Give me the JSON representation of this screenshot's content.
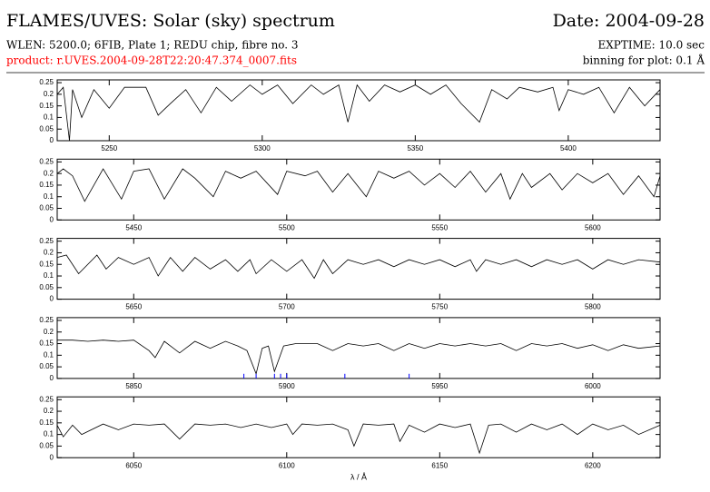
{
  "header": {
    "title": "FLAMES/UVES: Solar (sky) spectrum",
    "date": "Date: 2004-09-28",
    "setup": "WLEN: 5200.0; 6FIB, Plate 1; REDU chip, fibre no. 3",
    "exptime": "EXPTIME: 10.0 sec",
    "product": "product: r.UVES.2004-09-28T22:20:47.374_0007.fits",
    "binning": "binning for plot: 0.1 Å"
  },
  "chart_data": [
    {
      "type": "line",
      "color": "#000000",
      "xlim": [
        5233,
        5430
      ],
      "xticks": [
        5250,
        5300,
        5350,
        5400
      ],
      "ylim": [
        0,
        0.262
      ],
      "yticks": [
        0,
        0.05,
        0.1,
        0.15,
        0.2,
        0.25
      ],
      "x": [
        5233,
        5235,
        5237,
        5238,
        5241,
        5245,
        5250,
        5255,
        5262,
        5266,
        5270,
        5275,
        5280,
        5285,
        5290,
        5296,
        5300,
        5305,
        5310,
        5316,
        5320,
        5325,
        5328,
        5331,
        5335,
        5340,
        5345,
        5350,
        5355,
        5360,
        5365,
        5371,
        5375,
        5380,
        5384,
        5390,
        5395,
        5397,
        5400,
        5405,
        5410,
        5415,
        5420,
        5425,
        5430
      ],
      "values": [
        0.2,
        0.23,
        0.0,
        0.22,
        0.1,
        0.22,
        0.14,
        0.23,
        0.23,
        0.11,
        0.16,
        0.22,
        0.12,
        0.23,
        0.17,
        0.24,
        0.2,
        0.24,
        0.16,
        0.24,
        0.2,
        0.24,
        0.08,
        0.24,
        0.17,
        0.24,
        0.21,
        0.24,
        0.2,
        0.24,
        0.16,
        0.08,
        0.22,
        0.18,
        0.23,
        0.21,
        0.23,
        0.13,
        0.22,
        0.2,
        0.23,
        0.12,
        0.23,
        0.15,
        0.22
      ]
    },
    {
      "type": "line",
      "color": "#000000",
      "xlim": [
        5425,
        5622
      ],
      "xticks": [
        5450,
        5500,
        5550,
        5600
      ],
      "ylim": [
        0,
        0.262
      ],
      "yticks": [
        0,
        0.05,
        0.1,
        0.15,
        0.2,
        0.25
      ],
      "x": [
        5425,
        5427,
        5430,
        5434,
        5440,
        5446,
        5450,
        5455,
        5460,
        5466,
        5470,
        5476,
        5480,
        5485,
        5490,
        5497,
        5500,
        5506,
        5510,
        5515,
        5520,
        5526,
        5530,
        5535,
        5540,
        5545,
        5550,
        5555,
        5560,
        5565,
        5570,
        5573,
        5577,
        5580,
        5586,
        5590,
        5595,
        5600,
        5605,
        5610,
        5615,
        5620,
        5622
      ],
      "values": [
        0.2,
        0.22,
        0.19,
        0.08,
        0.22,
        0.09,
        0.21,
        0.22,
        0.09,
        0.22,
        0.18,
        0.1,
        0.21,
        0.18,
        0.21,
        0.11,
        0.21,
        0.19,
        0.21,
        0.12,
        0.2,
        0.1,
        0.21,
        0.18,
        0.21,
        0.15,
        0.2,
        0.14,
        0.21,
        0.12,
        0.2,
        0.09,
        0.2,
        0.14,
        0.2,
        0.13,
        0.2,
        0.16,
        0.2,
        0.11,
        0.19,
        0.1,
        0.19
      ]
    },
    {
      "type": "line",
      "color": "#000000",
      "xlim": [
        5625,
        5822
      ],
      "xticks": [
        5650,
        5700,
        5750,
        5800
      ],
      "ylim": [
        0,
        0.262
      ],
      "yticks": [
        0,
        0.05,
        0.1,
        0.15,
        0.2,
        0.25
      ],
      "x": [
        5625,
        5628,
        5632,
        5638,
        5641,
        5645,
        5650,
        5655,
        5658,
        5662,
        5666,
        5670,
        5675,
        5680,
        5684,
        5688,
        5690,
        5695,
        5700,
        5705,
        5709,
        5712,
        5715,
        5720,
        5725,
        5730,
        5735,
        5740,
        5745,
        5750,
        5755,
        5760,
        5762,
        5765,
        5770,
        5775,
        5780,
        5785,
        5790,
        5795,
        5800,
        5805,
        5810,
        5815,
        5822
      ],
      "values": [
        0.18,
        0.19,
        0.11,
        0.19,
        0.13,
        0.18,
        0.15,
        0.18,
        0.1,
        0.18,
        0.12,
        0.18,
        0.13,
        0.17,
        0.12,
        0.17,
        0.11,
        0.17,
        0.12,
        0.17,
        0.09,
        0.17,
        0.11,
        0.17,
        0.15,
        0.17,
        0.14,
        0.17,
        0.15,
        0.17,
        0.14,
        0.17,
        0.12,
        0.17,
        0.15,
        0.17,
        0.14,
        0.17,
        0.15,
        0.17,
        0.13,
        0.17,
        0.15,
        0.17,
        0.16
      ]
    },
    {
      "type": "line",
      "color": "#000000",
      "xlim": [
        5825,
        6022
      ],
      "xticks": [
        5850,
        5900,
        5950,
        6000
      ],
      "ylim": [
        0,
        0.262
      ],
      "yticks": [
        0,
        0.05,
        0.1,
        0.15,
        0.2,
        0.25
      ],
      "x": [
        5825,
        5830,
        5835,
        5840,
        5845,
        5850,
        5855,
        5857,
        5860,
        5865,
        5870,
        5875,
        5880,
        5884,
        5887,
        5890,
        5892,
        5894,
        5896,
        5899,
        5903,
        5910,
        5915,
        5920,
        5925,
        5930,
        5935,
        5940,
        5945,
        5950,
        5955,
        5960,
        5965,
        5970,
        5975,
        5980,
        5985,
        5990,
        5995,
        6000,
        6005,
        6010,
        6015,
        6022
      ],
      "values": [
        0.165,
        0.165,
        0.16,
        0.165,
        0.16,
        0.165,
        0.12,
        0.09,
        0.16,
        0.11,
        0.16,
        0.13,
        0.16,
        0.14,
        0.12,
        0.02,
        0.13,
        0.14,
        0.03,
        0.14,
        0.15,
        0.15,
        0.12,
        0.15,
        0.14,
        0.15,
        0.12,
        0.15,
        0.13,
        0.15,
        0.14,
        0.15,
        0.14,
        0.15,
        0.12,
        0.15,
        0.14,
        0.15,
        0.13,
        0.145,
        0.12,
        0.145,
        0.13,
        0.14
      ],
      "markers": {
        "color": "#0000ff",
        "x": [
          5886,
          5890,
          5896,
          5898,
          5900,
          5919,
          5940
        ],
        "values": [
          0.02,
          0.02,
          0.02,
          0.02,
          0.02,
          0.02,
          0.02
        ]
      }
    },
    {
      "type": "line",
      "color": "#000000",
      "xlim": [
        6025,
        6222
      ],
      "xticks": [
        6050,
        6100,
        6150,
        6200
      ],
      "ylim": [
        0,
        0.262
      ],
      "yticks": [
        0,
        0.05,
        0.1,
        0.15,
        0.2,
        0.25
      ],
      "x_label": "λ / Å",
      "x": [
        6025,
        6027,
        6030,
        6033,
        6040,
        6045,
        6050,
        6055,
        6060,
        6065,
        6070,
        6075,
        6080,
        6085,
        6090,
        6095,
        6100,
        6102,
        6105,
        6110,
        6115,
        6120,
        6122,
        6125,
        6130,
        6135,
        6137,
        6140,
        6145,
        6150,
        6155,
        6160,
        6163,
        6166,
        6170,
        6175,
        6180,
        6185,
        6190,
        6195,
        6200,
        6205,
        6210,
        6215,
        6222
      ],
      "values": [
        0.14,
        0.09,
        0.14,
        0.1,
        0.145,
        0.12,
        0.145,
        0.14,
        0.145,
        0.08,
        0.145,
        0.14,
        0.145,
        0.13,
        0.145,
        0.13,
        0.145,
        0.1,
        0.145,
        0.14,
        0.145,
        0.12,
        0.05,
        0.145,
        0.14,
        0.145,
        0.07,
        0.14,
        0.11,
        0.145,
        0.13,
        0.145,
        0.02,
        0.14,
        0.145,
        0.11,
        0.145,
        0.12,
        0.145,
        0.1,
        0.145,
        0.12,
        0.14,
        0.1,
        0.14
      ]
    }
  ]
}
